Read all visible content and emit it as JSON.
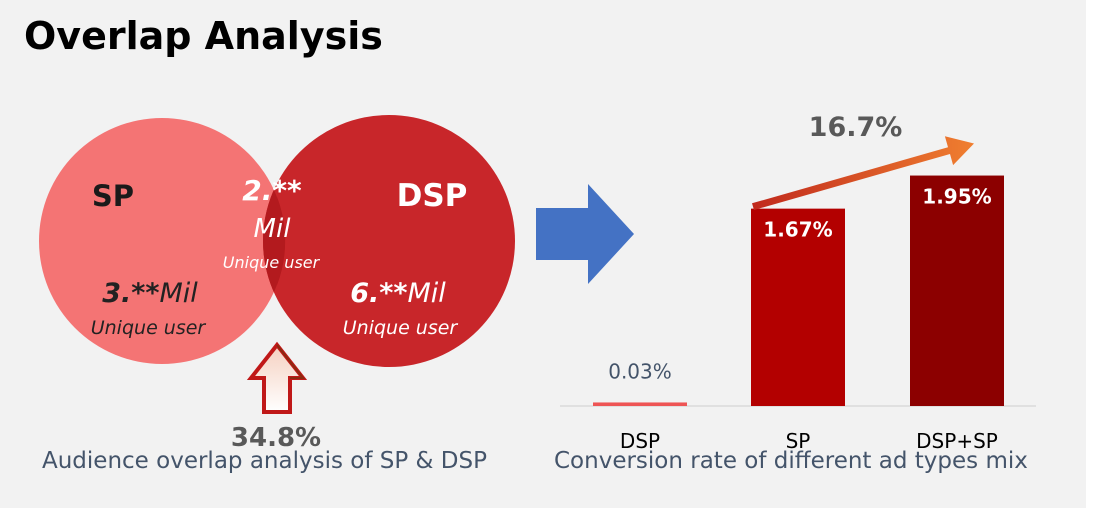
{
  "page": {
    "title": "Overlap Analysis"
  },
  "venn": {
    "left_set_label": "SP",
    "right_set_label": "DSP",
    "left_value": "3.**",
    "left_unit": "Mil",
    "left_sub": "Unique user",
    "overlap_value": "2.**",
    "overlap_unit": "Mil",
    "overlap_sub": "Unique user",
    "right_value": "6.**",
    "right_unit": "Mil",
    "right_sub": "Unique user",
    "overlap_pct": "34.8%",
    "caption": "Audience overlap analysis of SP & DSP",
    "colors": {
      "left": "#f47474",
      "right": "#c8262a",
      "overlap": "#b3181c"
    }
  },
  "arrow": {
    "icon": "right-arrow-icon",
    "color": "#4472c4"
  },
  "chart_data": {
    "type": "bar",
    "categories": [
      "DSP",
      "SP",
      "DSP+SP"
    ],
    "values": [
      0.03,
      1.67,
      1.95
    ],
    "labels": [
      "0.03%",
      "1.67%",
      "1.95%"
    ],
    "colors": [
      "#ee5555",
      "#b30000",
      "#8c0000"
    ],
    "ylim": [
      0,
      2.2
    ],
    "annotation": "16.7%",
    "caption": "Conversion rate of different ad types mix"
  }
}
